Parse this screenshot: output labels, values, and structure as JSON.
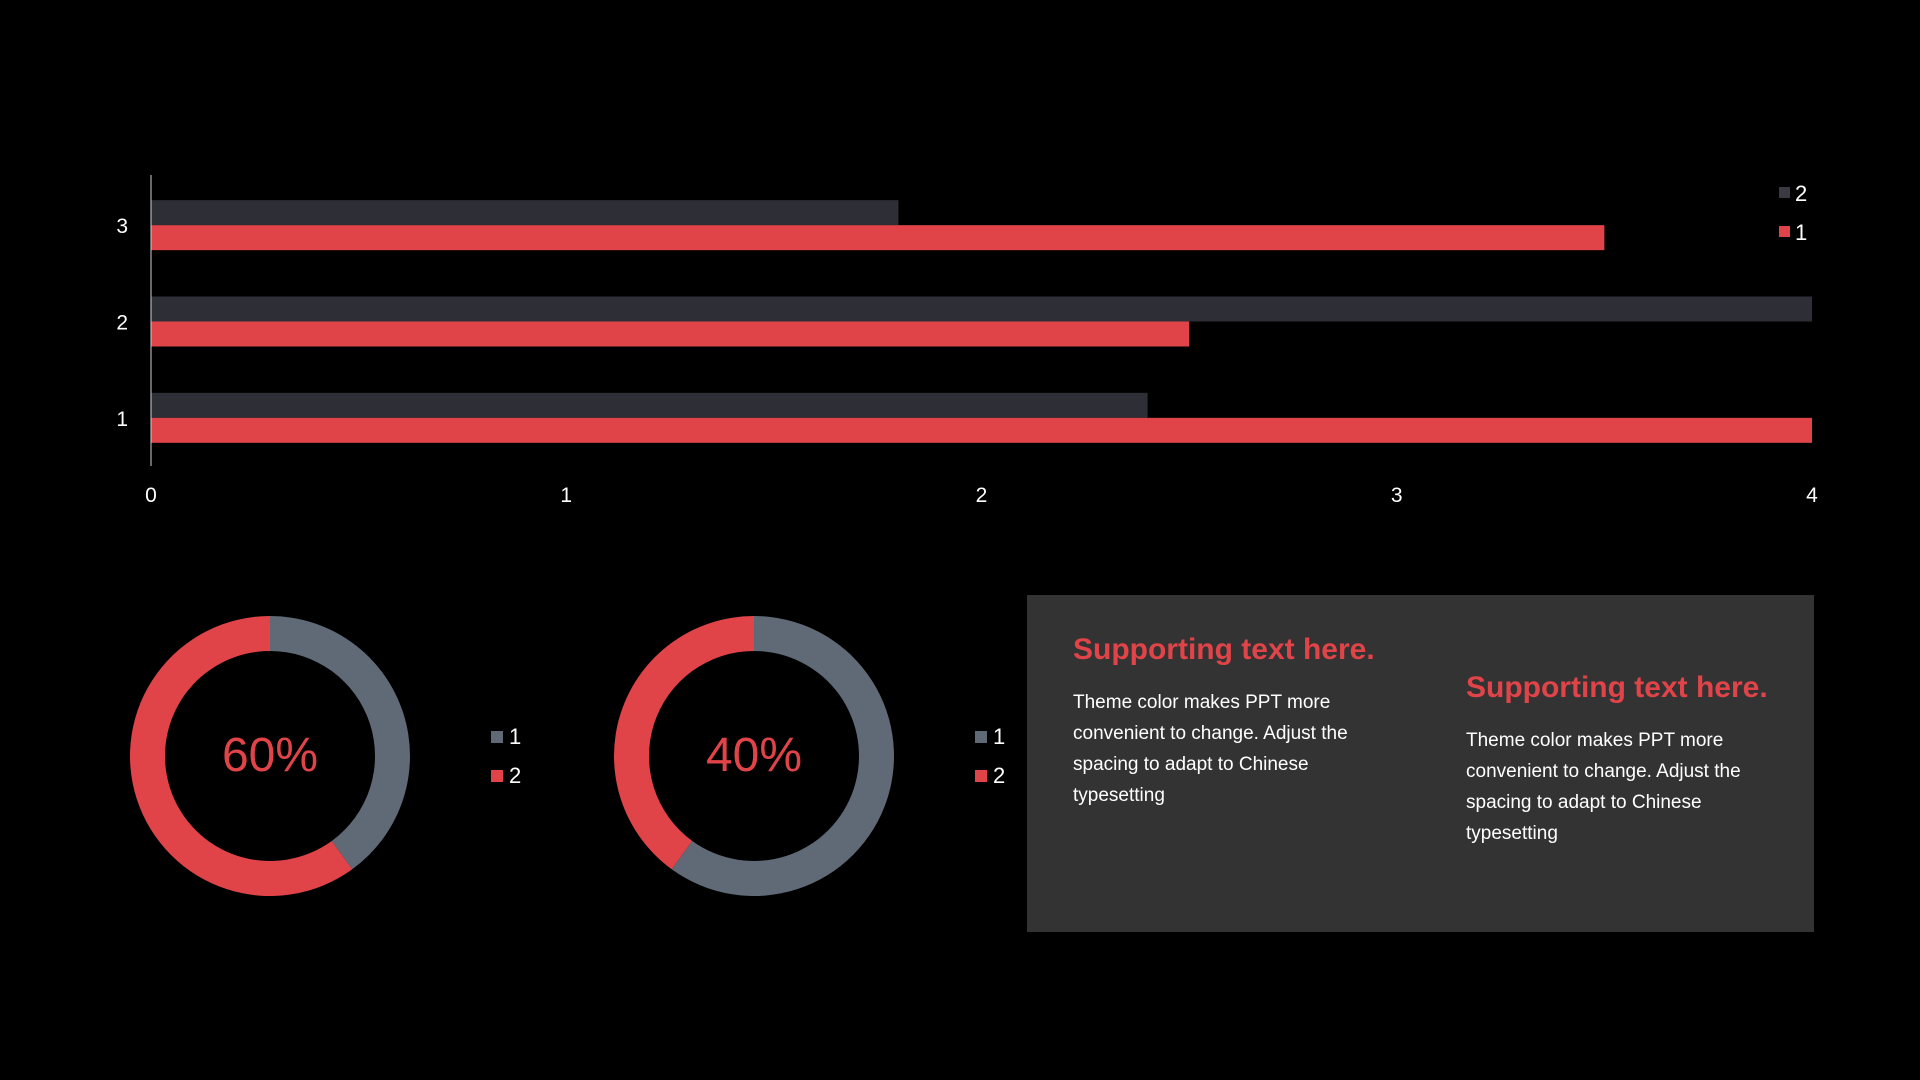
{
  "chart_data": [
    {
      "type": "bar",
      "orientation": "horizontal",
      "categories": [
        "1",
        "2",
        "3"
      ],
      "series": [
        {
          "name": "1",
          "color": "#e04448",
          "values": [
            4.0,
            2.5,
            3.5
          ]
        },
        {
          "name": "2",
          "color": "#2e2f36",
          "values": [
            2.4,
            4.0,
            1.8
          ]
        }
      ],
      "x_ticks": [
        "0",
        "1",
        "2",
        "3",
        "4"
      ],
      "xlim": [
        0,
        4
      ],
      "title": "",
      "xlabel": "",
      "ylabel": "",
      "legend_order": [
        "2",
        "1"
      ],
      "legend_position": "top-right",
      "grid": false
    },
    {
      "type": "pie",
      "style": "donut",
      "center_label": "60%",
      "slices": [
        {
          "name": "1",
          "value": 40,
          "color": "#5f6a76"
        },
        {
          "name": "2",
          "value": 60,
          "color": "#e04448"
        }
      ],
      "legend_position": "right"
    },
    {
      "type": "pie",
      "style": "donut",
      "center_label": "40%",
      "slices": [
        {
          "name": "1",
          "value": 60,
          "color": "#5f6a76"
        },
        {
          "name": "2",
          "value": 40,
          "color": "#e04448"
        }
      ],
      "legend_position": "right"
    }
  ],
  "panel": {
    "columns": [
      {
        "heading": "Supporting text here.",
        "body": "Theme color makes PPT more convenient to change. Adjust the spacing to adapt to Chinese typesetting"
      },
      {
        "heading": "Supporting text here.",
        "body": "Theme color makes PPT more convenient to change. Adjust the spacing to adapt to Chinese typesetting"
      }
    ]
  },
  "colors": {
    "background": "#000000",
    "accent": "#e04448",
    "dark_bar": "#2e2f36",
    "gray_slice": "#5f6a76",
    "panel": "#333333"
  }
}
